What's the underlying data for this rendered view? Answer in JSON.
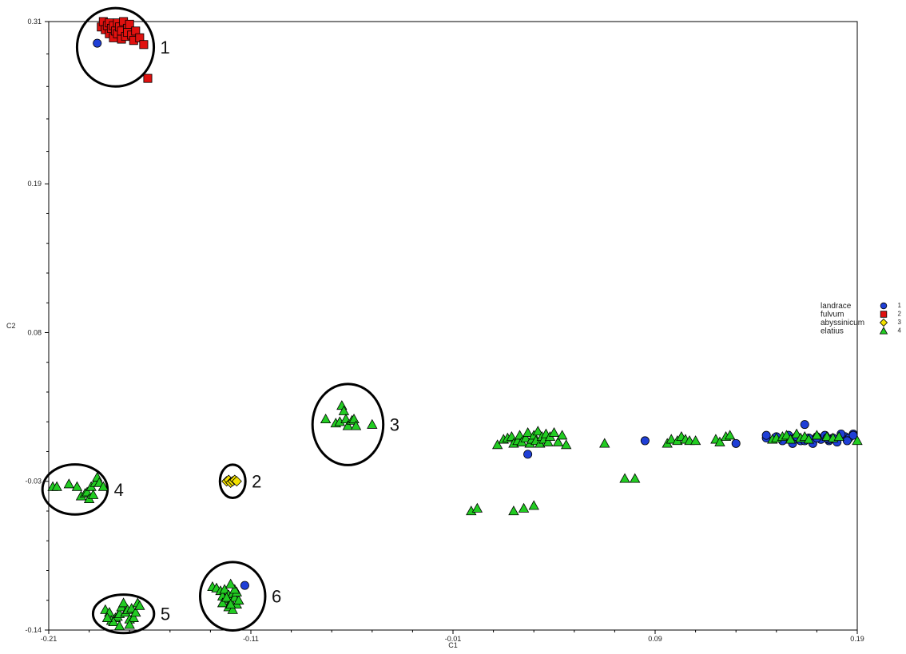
{
  "chart_data": {
    "type": "scatter",
    "title": "",
    "xlabel": "C1",
    "ylabel": "C2",
    "xlim": [
      -0.21,
      0.19
    ],
    "ylim": [
      -0.14,
      0.31
    ],
    "x_ticks": [
      -0.21,
      -0.11,
      -0.01,
      0.09,
      0.19
    ],
    "y_ticks": [
      -0.14,
      -0.03,
      0.08,
      0.19,
      0.31
    ],
    "x_tick_labels": [
      "-0.21",
      "-0.11",
      "-0.01",
      "0.09",
      "0.19"
    ],
    "y_tick_labels": [
      "-0.14",
      "-0.03",
      "0.08",
      "0.19",
      "0.31"
    ],
    "grid": false,
    "legend_position": "right",
    "series": [
      {
        "name": "landrace",
        "code": "1",
        "marker": "circle",
        "color": "#1f3fd6",
        "x": [
          -0.186,
          -0.113,
          0.027,
          0.085,
          0.13,
          0.145,
          0.145,
          0.15,
          0.153,
          0.156,
          0.158,
          0.16,
          0.162,
          0.164,
          0.166,
          0.168,
          0.17,
          0.172,
          0.174,
          0.176,
          0.178,
          0.18,
          0.182,
          0.184,
          0.186,
          0.188,
          0.158,
          0.164,
          0.17,
          0.176,
          0.182,
          0.188,
          0.16,
          0.175,
          0.185
        ],
        "y": [
          0.294,
          -0.107,
          -0.01,
          0.0,
          -0.002,
          0.002,
          0.004,
          0.003,
          0.0,
          0.004,
          0.001,
          0.003,
          0.0,
          0.012,
          0.002,
          -0.002,
          0.003,
          0.001,
          0.004,
          0.0,
          0.002,
          -0.001,
          0.004,
          0.003,
          0.002,
          0.005,
          -0.002,
          0.0,
          0.002,
          0.001,
          0.005,
          0.004,
          0.003,
          0.002,
          0.0
        ]
      },
      {
        "name": "fulvum",
        "code": "2",
        "marker": "square",
        "color": "#e0110f",
        "x": [
          -0.184,
          -0.183,
          -0.182,
          -0.181,
          -0.18,
          -0.18,
          -0.179,
          -0.178,
          -0.178,
          -0.177,
          -0.176,
          -0.176,
          -0.175,
          -0.174,
          -0.174,
          -0.173,
          -0.172,
          -0.171,
          -0.171,
          -0.17,
          -0.169,
          -0.168,
          -0.167,
          -0.165,
          -0.163,
          -0.161
        ],
        "y": [
          0.306,
          0.31,
          0.304,
          0.307,
          0.301,
          0.309,
          0.305,
          0.298,
          0.307,
          0.303,
          0.309,
          0.301,
          0.306,
          0.297,
          0.303,
          0.31,
          0.299,
          0.305,
          0.302,
          0.308,
          0.3,
          0.296,
          0.303,
          0.298,
          0.293,
          0.268
        ]
      },
      {
        "name": "abyssinicum",
        "code": "3",
        "marker": "diamond",
        "color": "#f2e000",
        "x": [
          -0.122,
          -0.121,
          -0.12,
          -0.119,
          -0.118,
          -0.117
        ],
        "y": [
          -0.03,
          -0.029,
          -0.031,
          -0.03,
          -0.029,
          -0.03
        ]
      },
      {
        "name": "elatius",
        "code": "4",
        "marker": "triangle",
        "color": "#22cc22",
        "x": [
          -0.073,
          -0.068,
          -0.066,
          -0.065,
          -0.064,
          -0.063,
          -0.062,
          -0.062,
          -0.06,
          -0.059,
          -0.058,
          -0.05,
          -0.208,
          -0.206,
          -0.2,
          -0.196,
          -0.194,
          -0.192,
          -0.191,
          -0.189,
          -0.187,
          -0.186,
          -0.185,
          -0.183,
          -0.19,
          -0.188,
          -0.182,
          -0.18,
          -0.179,
          -0.177,
          -0.176,
          -0.175,
          -0.174,
          -0.173,
          -0.172,
          -0.171,
          -0.17,
          -0.169,
          -0.168,
          -0.167,
          -0.166,
          -0.165,
          -0.178,
          -0.181,
          -0.175,
          -0.17,
          -0.129,
          -0.127,
          -0.125,
          -0.124,
          -0.123,
          -0.122,
          -0.121,
          -0.12,
          -0.119,
          -0.118,
          -0.117,
          -0.116,
          -0.124,
          -0.121,
          -0.119,
          -0.117,
          -0.122,
          -0.12,
          -0.118,
          -0.12,
          0.012,
          0.015,
          0.017,
          0.019,
          0.02,
          0.022,
          0.023,
          0.024,
          0.026,
          0.027,
          0.028,
          0.029,
          0.03,
          0.031,
          0.032,
          0.033,
          0.034,
          0.035,
          0.036,
          0.037,
          0.038,
          0.04,
          0.042,
          0.044,
          0.046,
          0.02,
          0.025,
          0.03,
          0.065,
          0.075,
          0.096,
          0.098,
          0.101,
          0.103,
          0.105,
          0.107,
          0.11,
          0.12,
          0.122,
          0.125,
          0.127,
          0.148,
          0.15,
          0.153,
          0.155,
          0.157,
          0.16,
          0.162,
          0.164,
          0.166,
          0.17,
          0.175,
          0.178,
          0.181,
          0.19,
          -0.001,
          0.002,
          0.08
        ],
        "y": [
          0.016,
          0.013,
          0.014,
          0.026,
          0.022,
          0.016,
          0.011,
          0.011,
          0.015,
          0.016,
          0.011,
          0.012,
          -0.034,
          -0.034,
          -0.032,
          -0.034,
          -0.041,
          -0.039,
          -0.038,
          -0.034,
          -0.031,
          -0.027,
          -0.031,
          -0.034,
          -0.043,
          -0.04,
          -0.125,
          -0.127,
          -0.133,
          -0.131,
          -0.13,
          -0.128,
          -0.123,
          -0.12,
          -0.127,
          -0.125,
          -0.132,
          -0.124,
          -0.131,
          -0.127,
          -0.12,
          -0.122,
          -0.134,
          -0.131,
          -0.137,
          -0.136,
          -0.108,
          -0.109,
          -0.111,
          -0.115,
          -0.11,
          -0.117,
          -0.114,
          -0.119,
          -0.113,
          -0.116,
          -0.121,
          -0.118,
          -0.12,
          -0.123,
          -0.125,
          -0.112,
          -0.116,
          -0.121,
          -0.11,
          -0.106,
          -0.003,
          0.001,
          0.002,
          0.003,
          -0.002,
          0.0,
          0.004,
          -0.001,
          0.002,
          0.006,
          -0.002,
          0.001,
          0.004,
          0.0,
          0.007,
          -0.002,
          0.003,
          0.001,
          0.005,
          -0.001,
          0.003,
          0.006,
          -0.001,
          0.004,
          -0.003,
          -0.052,
          -0.05,
          -0.048,
          -0.002,
          -0.028,
          -0.002,
          0.001,
          0.0,
          0.003,
          0.001,
          0.0,
          0.0,
          0.001,
          -0.001,
          0.003,
          0.004,
          0.001,
          0.002,
          0.003,
          0.004,
          0.001,
          0.005,
          0.002,
          0.003,
          0.001,
          0.004,
          0.003,
          0.002,
          0.003,
          0.0,
          -0.052,
          -0.05,
          -0.028
        ]
      }
    ],
    "annotations": [
      {
        "label": "1",
        "cx": -0.177,
        "cy": 0.291,
        "rx": 0.019,
        "ry": 0.029
      },
      {
        "label": "2",
        "cx": -0.119,
        "cy": -0.03,
        "rx": 0.0063,
        "ry": 0.0123
      },
      {
        "label": "3",
        "cx": -0.062,
        "cy": 0.012,
        "rx": 0.0175,
        "ry": 0.03
      },
      {
        "label": "4",
        "cx": -0.197,
        "cy": -0.036,
        "rx": 0.0161,
        "ry": 0.0185
      },
      {
        "label": "5",
        "cx": -0.173,
        "cy": -0.128,
        "rx": 0.0151,
        "ry": 0.0142
      },
      {
        "label": "6",
        "cx": -0.119,
        "cy": -0.115,
        "rx": 0.0161,
        "ry": 0.0253
      }
    ]
  }
}
